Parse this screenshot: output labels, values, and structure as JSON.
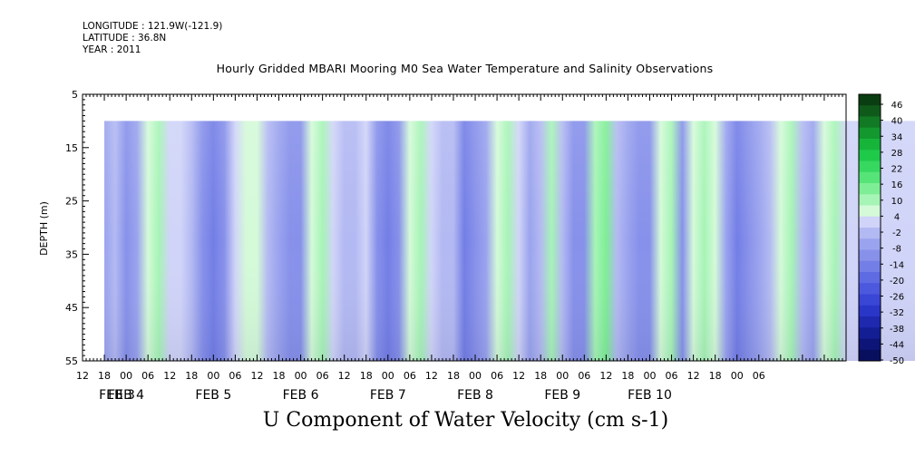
{
  "header": {
    "longitude": "LONGITUDE : 121.9W(-121.9)",
    "latitude": "LATITUDE : 36.8N",
    "year": "YEAR : 2011"
  },
  "chart_data": {
    "type": "heatmap",
    "title": "Hourly Gridded MBARI Mooring M0 Sea Water Temperature and Salinity Observations",
    "variable": "U Component of Water Velocity (cm s-1)",
    "ylabel": "DEPTH (m)",
    "ylim": [
      55,
      5
    ],
    "y_ticks": [
      "5",
      "15",
      "25",
      "35",
      "45",
      "55"
    ],
    "data_depth_range_m": [
      10,
      55
    ],
    "x_hour_ticks": [
      "12",
      "18",
      "00",
      "06",
      "12",
      "18",
      "00",
      "06",
      "12",
      "18",
      "00",
      "06",
      "12",
      "18",
      "00",
      "06",
      "12",
      "18",
      "00",
      "06",
      "12",
      "18",
      "00",
      "06",
      "12",
      "18",
      "00",
      "06",
      "12",
      "18",
      "00",
      "06"
    ],
    "x_date_labels": [
      {
        "label": "FEB  3",
        "day": 3
      },
      {
        "label": "FEB  4",
        "day": 4
      },
      {
        "label": "FEB  5",
        "day": 5
      },
      {
        "label": "FEB  6",
        "day": 6
      },
      {
        "label": "FEB  7",
        "day": 7
      },
      {
        "label": "FEB  8",
        "day": 8
      },
      {
        "label": "FEB  9",
        "day": 9
      },
      {
        "label": "FEB 10",
        "day": 10
      }
    ],
    "time_range": "2011-02-03 12:00 to 2011-02-10 ~09:00",
    "colorbar_levels": [
      "46",
      "40",
      "34",
      "28",
      "22",
      "16",
      "10",
      "4",
      "-2",
      "-8",
      "-14",
      "-20",
      "-26",
      "-32",
      "-38",
      "-44",
      "-50"
    ],
    "colorbar_colors": [
      "#0b3d12",
      "#0f5a1b",
      "#127a25",
      "#12982f",
      "#16b53a",
      "#1fc94a",
      "#36d860",
      "#56e478",
      "#7eee96",
      "#a6f4b6",
      "#d4fad8",
      "#d0d4f8",
      "#b3b9f2",
      "#9aa3ee",
      "#8791ea",
      "#737ee6",
      "#5f6be2",
      "#4c58dd",
      "#3a46d6",
      "#2a36c8",
      "#1e29b0",
      "#141e94",
      "#0d1578",
      "#080f5e"
    ],
    "u_profile_cm_s": {
      "hours_from_feb3_00": [
        18,
        21,
        24,
        27,
        30,
        33,
        36,
        39,
        42,
        45,
        48,
        51,
        54,
        57,
        60,
        63,
        66,
        69,
        72,
        75,
        78,
        81,
        84,
        87,
        90,
        93,
        96,
        99,
        102,
        105,
        108,
        111,
        114,
        117,
        120,
        123,
        126,
        129,
        132,
        135,
        138,
        141,
        144,
        147,
        150,
        153,
        156,
        159,
        162,
        165,
        168,
        171,
        174,
        177,
        180,
        183,
        186,
        189,
        192,
        195,
        198,
        201,
        204,
        207,
        210,
        213,
        216,
        219,
        222,
        225,
        228,
        231,
        234,
        237,
        240,
        243,
        246,
        249,
        252,
        255
      ],
      "values": [
        -6,
        -2,
        -12,
        -8,
        8,
        12,
        4,
        2,
        -4,
        -12,
        -14,
        -10,
        4,
        8,
        6,
        -4,
        -6,
        -12,
        -10,
        6,
        10,
        4,
        -2,
        -2,
        4,
        -10,
        -14,
        -10,
        6,
        10,
        2,
        -4,
        -4,
        -14,
        -12,
        -8,
        8,
        10,
        4,
        -6,
        -2,
        10,
        0,
        -10,
        -12,
        10,
        14,
        -4,
        -8,
        -12,
        -10,
        8,
        10,
        -10,
        6,
        12,
        6,
        -6,
        -14,
        -12,
        -6,
        -4,
        6,
        10,
        -2,
        -6,
        8,
        12,
        2,
        -6,
        -4,
        -8,
        8,
        10,
        -2,
        -6,
        -10,
        -4,
        10,
        2
      ]
    }
  }
}
